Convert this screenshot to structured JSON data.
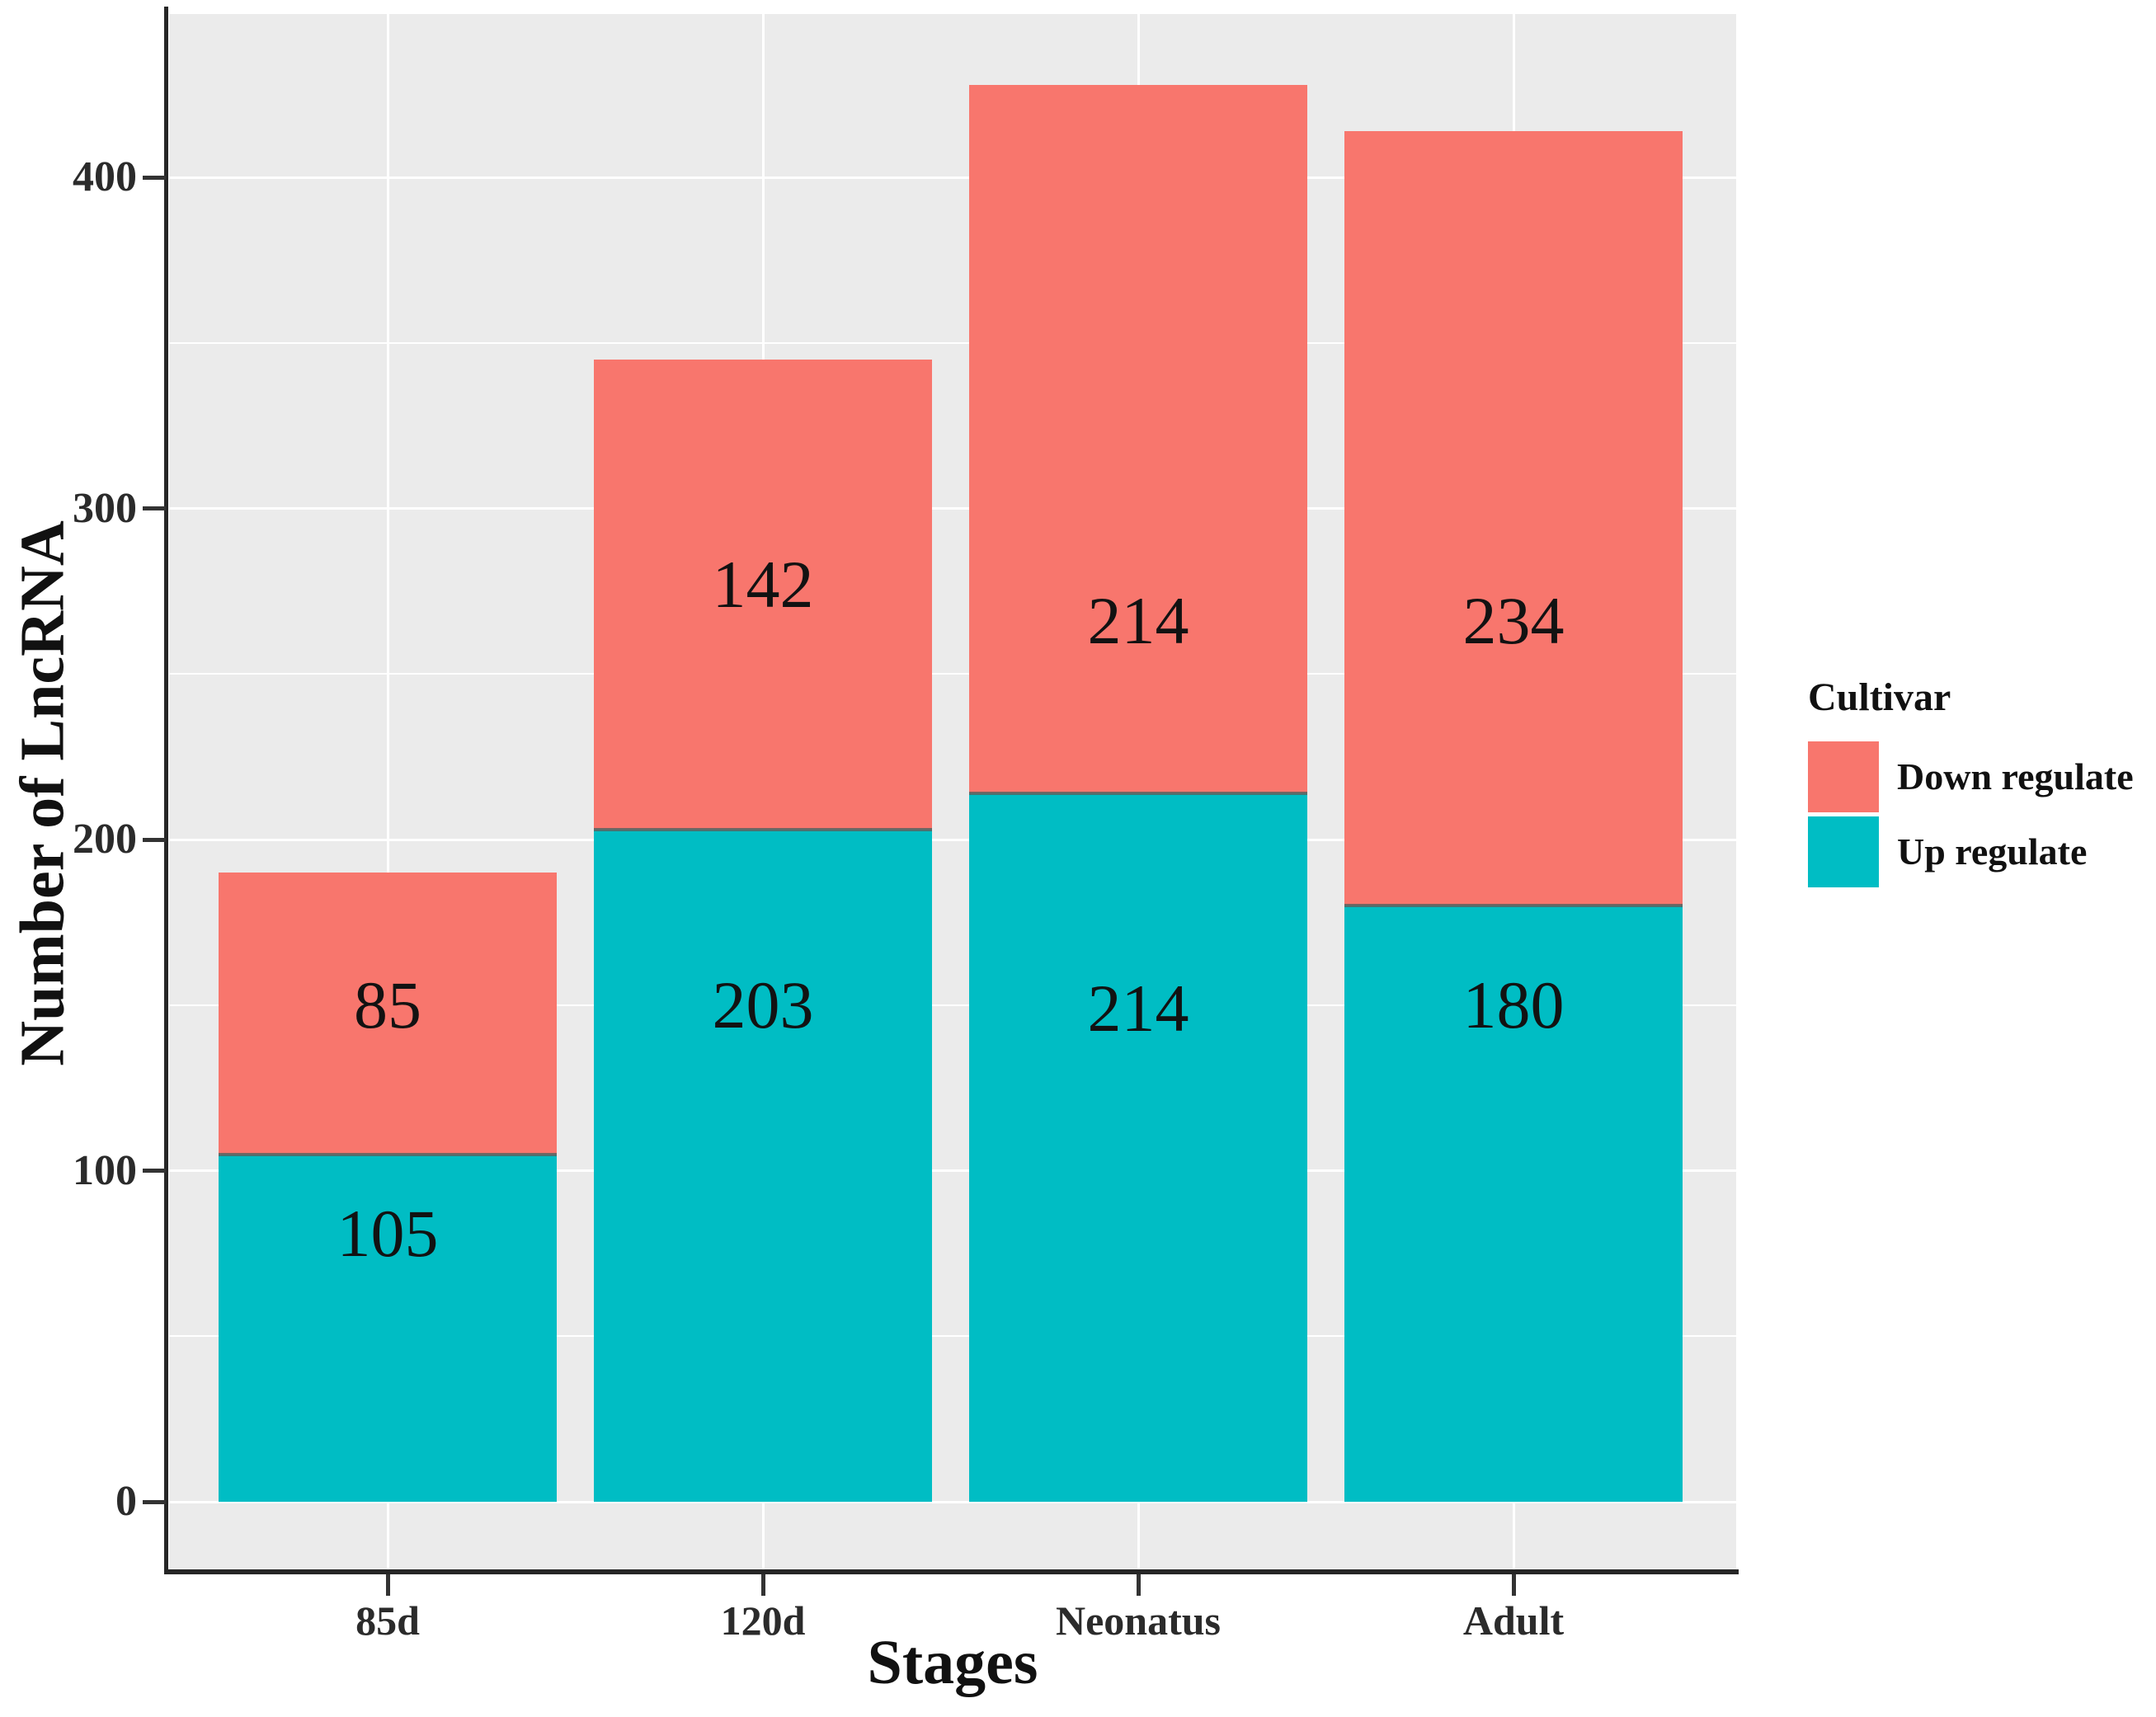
{
  "chart_data": {
    "type": "bar",
    "stacked": true,
    "xlabel": "Stages",
    "ylabel": "Number of LncRNA",
    "categories": [
      "85d",
      "120d",
      "Neonatus",
      "Adult"
    ],
    "series": [
      {
        "name": "Up regulate",
        "color": "#00BDC4",
        "values": [
          105,
          203,
          214,
          180
        ],
        "label_anchor_y": [
          81,
          150,
          149,
          150
        ]
      },
      {
        "name": "Down regulate",
        "color": "#F8766D",
        "values": [
          85,
          142,
          214,
          234
        ],
        "label_anchor_y": [
          150,
          277,
          266,
          266
        ]
      }
    ],
    "bar_totals": [
      190,
      345,
      428,
      414
    ],
    "y_ticks": [
      0,
      100,
      200,
      300,
      400
    ],
    "y_tick_labels": [
      "0",
      "100",
      "200",
      "300",
      "400"
    ],
    "y_minor_ticks": [
      50,
      150,
      250,
      350
    ],
    "ylim": [
      -21.4,
      449.4
    ],
    "grid": true,
    "panel_bg": "#EBEBEB",
    "grid_color": "#FFFFFF",
    "legend": {
      "title": "Cultivar",
      "position": "right",
      "entries": [
        {
          "label": "Down regulate",
          "color": "#F8766D"
        },
        {
          "label": "Up regulate",
          "color": "#00BDC4"
        }
      ]
    }
  }
}
